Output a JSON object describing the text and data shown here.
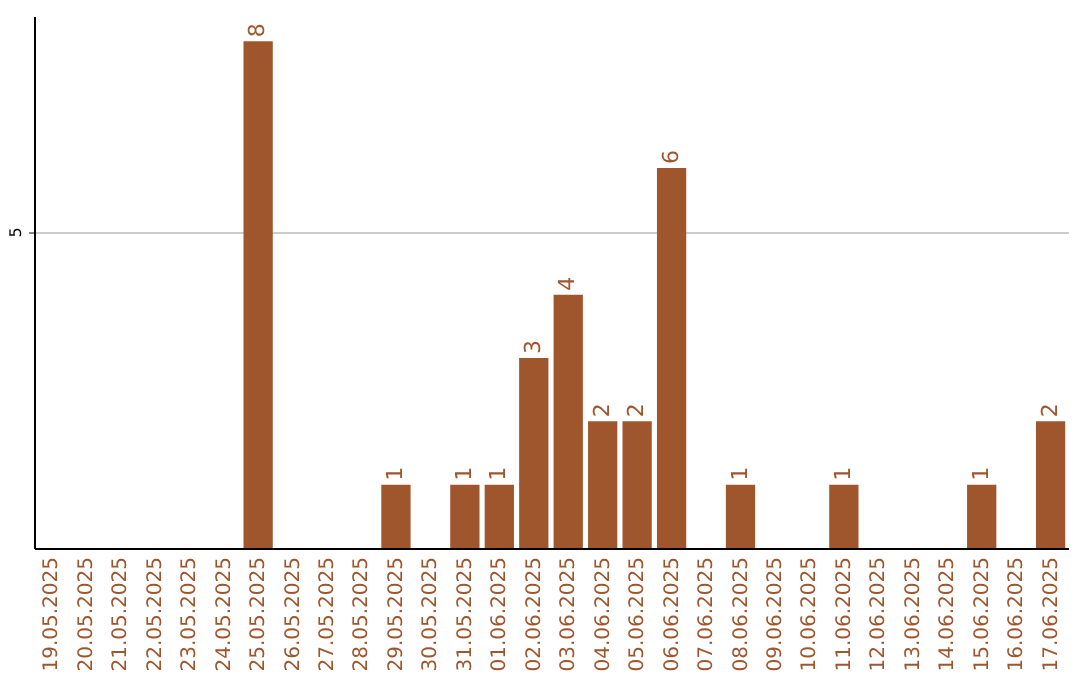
{
  "chart_data": {
    "type": "bar",
    "categories": [
      "19.05.2025",
      "20.05.2025",
      "21.05.2025",
      "22.05.2025",
      "23.05.2025",
      "24.05.2025",
      "25.05.2025",
      "26.05.2025",
      "27.05.2025",
      "28.05.2025",
      "29.05.2025",
      "30.05.2025",
      "31.05.2025",
      "01.06.2025",
      "02.06.2025",
      "03.06.2025",
      "04.06.2025",
      "05.06.2025",
      "06.06.2025",
      "07.06.2025",
      "08.06.2025",
      "09.06.2025",
      "10.06.2025",
      "11.06.2025",
      "12.06.2025",
      "13.06.2025",
      "14.06.2025",
      "15.06.2025",
      "16.06.2025",
      "17.06.2025"
    ],
    "values": [
      0,
      0,
      0,
      0,
      0,
      0,
      8,
      0,
      0,
      0,
      1,
      0,
      1,
      1,
      3,
      4,
      2,
      2,
      6,
      0,
      1,
      0,
      0,
      1,
      0,
      0,
      0,
      1,
      0,
      2
    ],
    "value_labels": [
      null,
      null,
      null,
      null,
      null,
      null,
      "8",
      null,
      null,
      null,
      "1",
      null,
      "1",
      "1",
      "3",
      "4",
      "2",
      "2",
      "6",
      null,
      "1",
      null,
      null,
      "1",
      null,
      null,
      null,
      "1",
      null,
      "2"
    ],
    "color": "#a0562c",
    "ylim": [
      0,
      8.4
    ],
    "yticks": [
      5
    ],
    "grid": "y"
  }
}
